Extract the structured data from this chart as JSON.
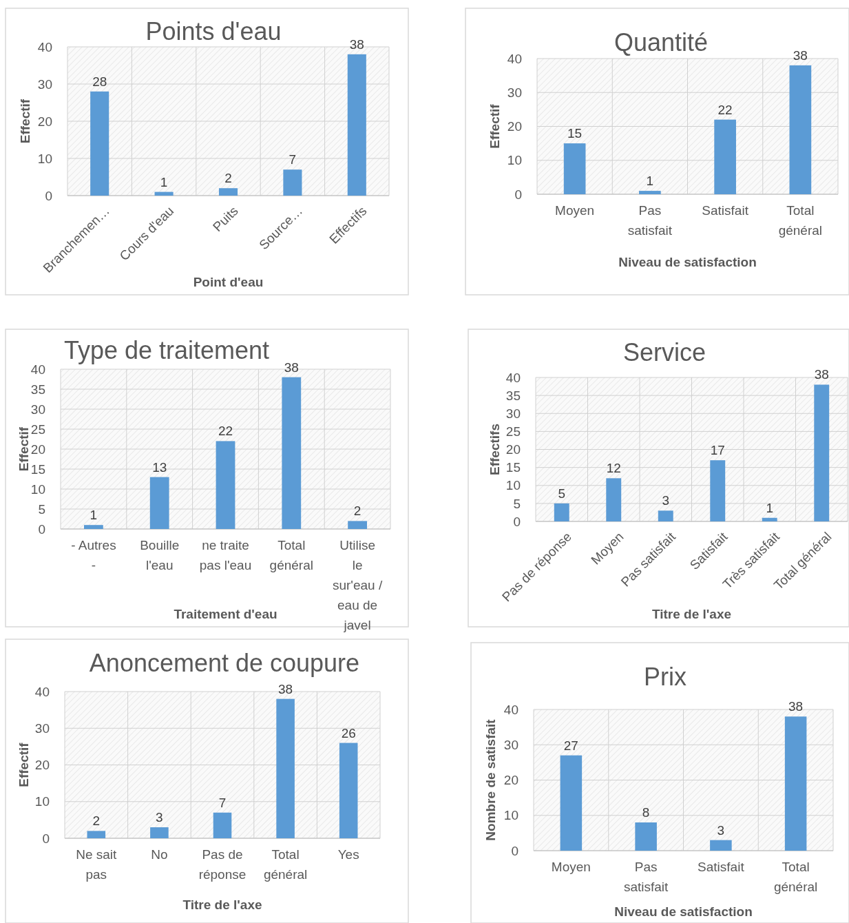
{
  "chart_data": [
    {
      "type": "bar",
      "title": "Points d'eau",
      "xlabel": "Point d'eau",
      "ylabel": "Effectif",
      "categories": [
        "Branchemen…",
        "Cours d'eau",
        "Puits",
        "Source…",
        "Effectifs"
      ],
      "values": [
        28,
        1,
        2,
        7,
        38
      ],
      "color": "#5b9bd5",
      "ylim": [
        0,
        40
      ],
      "yticks": [
        0,
        10,
        20,
        30,
        40
      ],
      "grid": true,
      "data_labels": true
    },
    {
      "type": "bar",
      "title": "Quantité",
      "xlabel": "Niveau de satisfaction",
      "ylabel": "Effectif",
      "categories": [
        "Moyen",
        "Pas satisfait",
        "Satisfait",
        "Total général"
      ],
      "values": [
        15,
        1,
        22,
        38
      ],
      "color": "#5b9bd5",
      "ylim": [
        0,
        40
      ],
      "yticks": [
        0,
        10,
        20,
        30,
        40
      ],
      "grid": true,
      "data_labels": true
    },
    {
      "type": "bar",
      "title": "Type de traitement",
      "xlabel": "Traitement d'eau",
      "ylabel": "Effectif",
      "categories": [
        "- Autres -",
        "Bouille l'eau",
        "ne traite pas l'eau",
        "Total général",
        "Utilise le sur'eau / eau de javel"
      ],
      "values": [
        1,
        13,
        22,
        38,
        2
      ],
      "color": "#5b9bd5",
      "ylim": [
        0,
        40
      ],
      "yticks": [
        0,
        5,
        10,
        15,
        20,
        25,
        30,
        35,
        40
      ],
      "grid": true,
      "data_labels": true
    },
    {
      "type": "bar",
      "title": "Service",
      "xlabel": "Titre de l'axe",
      "ylabel": "Effectifs",
      "categories": [
        "Pas de réponse",
        "Moyen",
        "Pas satisfait",
        "Satisfait",
        "Très satisfait",
        "Total général"
      ],
      "values": [
        5,
        12,
        3,
        17,
        1,
        38
      ],
      "color": "#5b9bd5",
      "ylim": [
        0,
        40
      ],
      "yticks": [
        0,
        5,
        10,
        15,
        20,
        25,
        30,
        35,
        40
      ],
      "grid": true,
      "data_labels": true
    },
    {
      "type": "bar",
      "title": "Anoncement de coupure",
      "xlabel": "Titre de l'axe",
      "ylabel": "Effectif",
      "categories": [
        "Ne sait pas",
        "No",
        "Pas de réponse",
        "Total général",
        "Yes"
      ],
      "values": [
        2,
        3,
        7,
        38,
        26
      ],
      "color": "#5b9bd5",
      "ylim": [
        0,
        40
      ],
      "yticks": [
        0,
        10,
        20,
        30,
        40
      ],
      "grid": true,
      "data_labels": true
    },
    {
      "type": "bar",
      "title": "Prix",
      "xlabel": "Niveau de satisfaction",
      "ylabel": "Nombre de satisfait",
      "categories": [
        "Moyen",
        "Pas satisfait",
        "Satisfait",
        "Total général"
      ],
      "values": [
        27,
        8,
        3,
        38
      ],
      "color": "#5b9bd5",
      "ylim": [
        0,
        40
      ],
      "yticks": [
        0,
        10,
        20,
        30,
        40
      ],
      "grid": true,
      "data_labels": true
    }
  ]
}
